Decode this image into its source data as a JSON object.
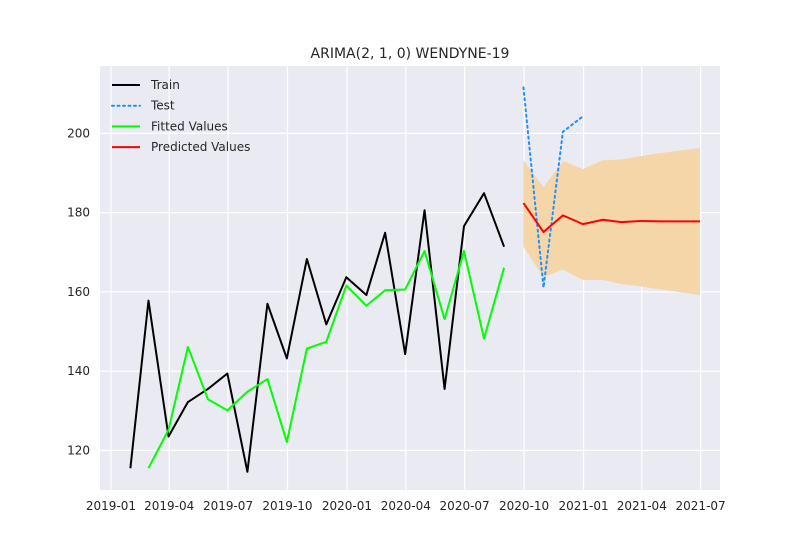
{
  "chart_data": {
    "type": "line",
    "title": "ARIMA(2, 1, 0) WENDYNE-19",
    "xlabel": "",
    "ylabel": "",
    "x_axis_type": "date",
    "xlim": [
      "2018-12-15",
      "2021-07-31"
    ],
    "ylim": [
      110,
      217
    ],
    "x_ticks": [
      {
        "date": "2019-01-01",
        "label": "2019-01"
      },
      {
        "date": "2019-04-01",
        "label": "2019-04"
      },
      {
        "date": "2019-07-01",
        "label": "2019-07"
      },
      {
        "date": "2019-10-01",
        "label": "2019-10"
      },
      {
        "date": "2020-01-01",
        "label": "2020-01"
      },
      {
        "date": "2020-04-01",
        "label": "2020-04"
      },
      {
        "date": "2020-07-01",
        "label": "2020-07"
      },
      {
        "date": "2020-10-01",
        "label": "2020-10"
      },
      {
        "date": "2021-01-01",
        "label": "2021-01"
      },
      {
        "date": "2021-04-01",
        "label": "2021-04"
      },
      {
        "date": "2021-07-01",
        "label": "2021-07"
      }
    ],
    "y_ticks": [
      120,
      140,
      160,
      180,
      200
    ],
    "grid": true,
    "legend_position": "top-left",
    "background_color": "#eaeaf2",
    "series": [
      {
        "name": "Train",
        "color": "#000000",
        "style": "solid",
        "points": [
          {
            "x": "2019-01-31",
            "y": 115.5
          },
          {
            "x": "2019-02-28",
            "y": 157.8
          },
          {
            "x": "2019-03-31",
            "y": 123.5
          },
          {
            "x": "2019-04-30",
            "y": 132.2
          },
          {
            "x": "2019-05-31",
            "y": 135.5
          },
          {
            "x": "2019-06-30",
            "y": 139.4
          },
          {
            "x": "2019-07-31",
            "y": 114.6
          },
          {
            "x": "2019-08-31",
            "y": 157.0
          },
          {
            "x": "2019-09-30",
            "y": 143.2
          },
          {
            "x": "2019-10-31",
            "y": 168.3
          },
          {
            "x": "2019-11-30",
            "y": 151.8
          },
          {
            "x": "2019-12-31",
            "y": 163.7
          },
          {
            "x": "2020-01-31",
            "y": 159.2
          },
          {
            "x": "2020-02-29",
            "y": 174.9
          },
          {
            "x": "2020-03-31",
            "y": 144.3
          },
          {
            "x": "2020-04-30",
            "y": 180.6
          },
          {
            "x": "2020-05-31",
            "y": 135.5
          },
          {
            "x": "2020-06-30",
            "y": 176.6
          },
          {
            "x": "2020-07-31",
            "y": 184.9
          },
          {
            "x": "2020-08-31",
            "y": 171.4
          }
        ]
      },
      {
        "name": "Test",
        "color": "#1e90ff",
        "style": "dotted",
        "points": [
          {
            "x": "2020-09-30",
            "y": 211.6
          },
          {
            "x": "2020-10-31",
            "y": 161.1
          },
          {
            "x": "2020-11-30",
            "y": 200.4
          },
          {
            "x": "2020-12-31",
            "y": 204.3
          }
        ]
      },
      {
        "name": "Fitted Values",
        "color": "#00ff00",
        "style": "solid",
        "points": [
          {
            "x": "2019-02-28",
            "y": 115.5
          },
          {
            "x": "2019-03-31",
            "y": 125.2
          },
          {
            "x": "2019-04-30",
            "y": 146.1
          },
          {
            "x": "2019-05-31",
            "y": 132.9
          },
          {
            "x": "2019-06-30",
            "y": 130.1
          },
          {
            "x": "2019-07-31",
            "y": 134.8
          },
          {
            "x": "2019-08-31",
            "y": 138.0
          },
          {
            "x": "2019-09-30",
            "y": 122.1
          },
          {
            "x": "2019-10-31",
            "y": 145.7
          },
          {
            "x": "2019-11-30",
            "y": 147.4
          },
          {
            "x": "2019-12-31",
            "y": 161.6
          },
          {
            "x": "2020-01-31",
            "y": 156.5
          },
          {
            "x": "2020-02-29",
            "y": 160.4
          },
          {
            "x": "2020-03-31",
            "y": 160.6
          },
          {
            "x": "2020-04-30",
            "y": 170.3
          },
          {
            "x": "2020-05-31",
            "y": 153.1
          },
          {
            "x": "2020-06-30",
            "y": 170.3
          },
          {
            "x": "2020-07-31",
            "y": 148.2
          },
          {
            "x": "2020-08-31",
            "y": 166.1
          }
        ]
      },
      {
        "name": "Predicted Values",
        "color": "#ff0000",
        "style": "solid",
        "points": [
          {
            "x": "2020-09-30",
            "y": 182.4
          },
          {
            "x": "2020-10-31",
            "y": 175.1
          },
          {
            "x": "2020-11-30",
            "y": 179.3
          },
          {
            "x": "2020-12-31",
            "y": 177.1
          },
          {
            "x": "2021-01-31",
            "y": 178.2
          },
          {
            "x": "2021-02-28",
            "y": 177.6
          },
          {
            "x": "2021-03-31",
            "y": 177.9
          },
          {
            "x": "2021-04-30",
            "y": 177.8
          },
          {
            "x": "2021-05-31",
            "y": 177.8
          },
          {
            "x": "2021-06-30",
            "y": 177.8
          }
        ]
      }
    ],
    "confidence_band": {
      "color": "#f5d6a8",
      "points": [
        {
          "x": "2020-09-30",
          "lower": 171.4,
          "upper": 193.2
        },
        {
          "x": "2020-10-31",
          "lower": 163.7,
          "upper": 186.4
        },
        {
          "x": "2020-11-30",
          "lower": 165.6,
          "upper": 193.0
        },
        {
          "x": "2020-12-31",
          "lower": 163.0,
          "upper": 191.0
        },
        {
          "x": "2021-01-31",
          "lower": 163.0,
          "upper": 193.2
        },
        {
          "x": "2021-02-28",
          "lower": 162.0,
          "upper": 193.4
        },
        {
          "x": "2021-03-31",
          "lower": 161.4,
          "upper": 194.3
        },
        {
          "x": "2021-04-30",
          "lower": 160.6,
          "upper": 195.0
        },
        {
          "x": "2021-05-31",
          "lower": 159.9,
          "upper": 195.7
        },
        {
          "x": "2021-06-30",
          "lower": 159.2,
          "upper": 196.3
        }
      ]
    }
  }
}
